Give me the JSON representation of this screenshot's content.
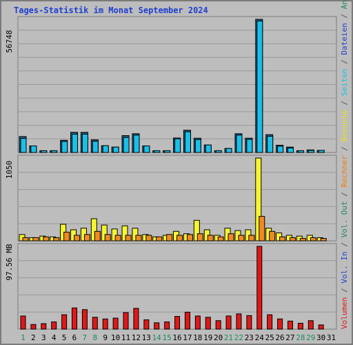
{
  "chart_data": {
    "type": "bar",
    "title": "Tages-Statistik im Monat September 2024",
    "categories": [
      "1",
      "2",
      "3",
      "4",
      "5",
      "6",
      "7",
      "8",
      "9",
      "10",
      "11",
      "12",
      "13",
      "14",
      "15",
      "16",
      "17",
      "18",
      "19",
      "20",
      "21",
      "22",
      "23",
      "24",
      "25",
      "26",
      "27",
      "28",
      "29",
      "30",
      "31"
    ],
    "weekend_days": [
      "1",
      "7",
      "8",
      "14",
      "15",
      "21",
      "22",
      "28",
      "29"
    ],
    "panels": [
      {
        "name": "anfragen-dateien",
        "ymax": 56748,
        "ymax_label": "56748",
        "series": [
          {
            "name": "Anfragen",
            "values": [
              6800,
              2800,
              760,
              760,
              5200,
              8600,
              8600,
              5400,
              2900,
              2300,
              7200,
              8000,
              2800,
              760,
              760,
              6200,
              9500,
              6100,
              3200,
              760,
              1700,
              8000,
              6100,
              56748,
              7600,
              3100,
              2300,
              760,
              1100,
              900,
              0
            ]
          },
          {
            "name": "Dateien",
            "values": [
              6000,
              2800,
              760,
              760,
              4700,
              7800,
              7800,
              4800,
              2900,
              2300,
              6400,
              7400,
              2800,
              760,
              760,
              5800,
              8800,
              5500,
              3200,
              760,
              1700,
              7400,
              5600,
              56000,
              6900,
              2700,
              1900,
              760,
              900,
              900,
              0
            ]
          }
        ]
      },
      {
        "name": "seiten-besuche-rechner",
        "ymax": 1050,
        "ymax_label": "1050",
        "series": [
          {
            "name": "Seiten",
            "values": [
              0,
              0,
              0,
              0,
              0,
              0,
              0,
              0,
              0,
              0,
              0,
              0,
              0,
              0,
              0,
              0,
              0,
              0,
              0,
              0,
              0,
              0,
              0,
              0,
              0,
              0,
              0,
              0,
              0,
              0,
              0
            ]
          },
          {
            "name": "Besuche",
            "values": [
              80,
              40,
              60,
              50,
              210,
              140,
              160,
              280,
              200,
              150,
              190,
              160,
              80,
              50,
              70,
              120,
              90,
              260,
              140,
              70,
              160,
              130,
              140,
              1050,
              160,
              100,
              70,
              60,
              70,
              40,
              0
            ]
          },
          {
            "name": "Rechner",
            "values": [
              40,
              40,
              50,
              40,
              110,
              70,
              80,
              120,
              80,
              70,
              70,
              70,
              70,
              50,
              80,
              70,
              80,
              90,
              70,
              50,
              90,
              70,
              70,
              310,
              120,
              50,
              40,
              30,
              40,
              30,
              0
            ]
          }
        ]
      },
      {
        "name": "volumen",
        "ymax": 97.56,
        "ymax_label": "97.56 MB",
        "series": [
          {
            "name": "Volumen",
            "values": [
              15.5,
              5.5,
              6.5,
              8.5,
              17,
              25,
              23,
              14,
              12,
              13,
              19.5,
              24.5,
              11,
              7.5,
              8.5,
              15,
              20,
              15.5,
              14,
              10,
              15.5,
              18,
              16,
              97.56,
              17,
              12,
              9.5,
              7,
              10,
              5,
              0
            ]
          }
        ]
      }
    ],
    "right_legend": [
      {
        "text": "Anfragen",
        "color": "#1f8a5a"
      },
      {
        "text": " / ",
        "color": "#555555"
      },
      {
        "text": "Dateien",
        "color": "#1f3fd0"
      },
      {
        "text": " / ",
        "color": "#555555"
      },
      {
        "text": "Seiten",
        "color": "#19c0e8"
      },
      {
        "text": " / ",
        "color": "#555555"
      },
      {
        "text": "Besuche",
        "color": "#e8e020"
      },
      {
        "text": " / ",
        "color": "#555555"
      },
      {
        "text": "Rechner",
        "color": "#f07a10"
      },
      {
        "text": " / ",
        "color": "#555555"
      },
      {
        "text": "Vol. Out",
        "color": "#1f8a5a"
      },
      {
        "text": " / ",
        "color": "#555555"
      },
      {
        "text": "Vol. In",
        "color": "#1f3fd0"
      },
      {
        "text": " / ",
        "color": "#555555"
      },
      {
        "text": "Volumen",
        "color": "#e01818"
      }
    ],
    "colors": {
      "anfragen": "#19c0e8",
      "dateien": "#1f5f8a",
      "besuche": "#f5f530",
      "rechner": "#f08a20",
      "volumen": "#e01818",
      "weekday_label": "#1f3fd0",
      "weekend_label": "#1f8a5a",
      "grid": "#999999"
    }
  }
}
